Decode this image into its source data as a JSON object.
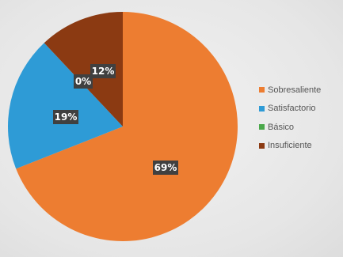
{
  "chart_data": {
    "type": "pie",
    "categories": [
      "Sobresaliente",
      "Satisfactorio",
      "Básico",
      "Insuficiente"
    ],
    "values": [
      69,
      19,
      0,
      12
    ],
    "data_labels": [
      "69%",
      "19%",
      "0%",
      "12%"
    ],
    "colors": [
      "#ed7d31",
      "#2e9bd6",
      "#4aa84a",
      "#8b3a12"
    ],
    "legend_position": "right",
    "title": ""
  }
}
